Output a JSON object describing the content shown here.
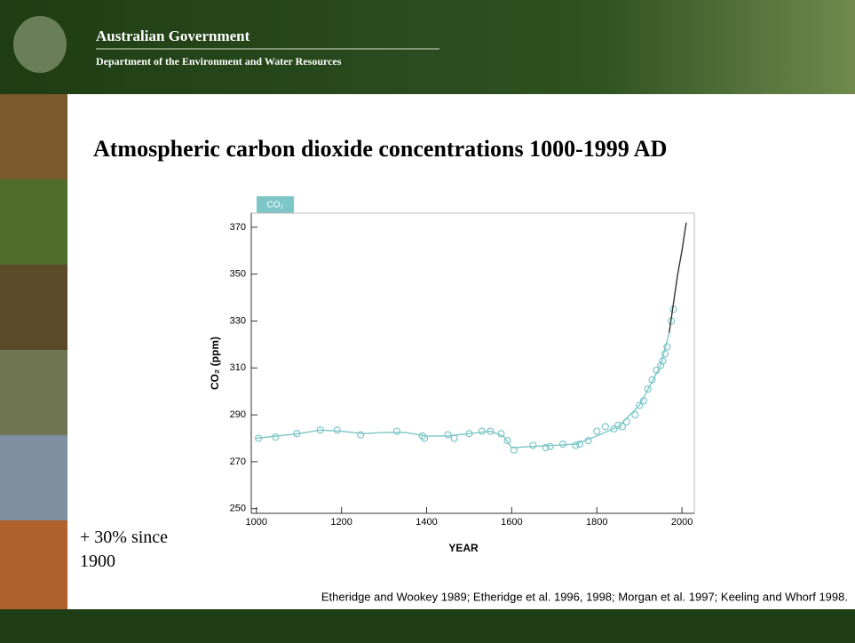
{
  "header": {
    "title": "Australian Government",
    "subtitle": "Department of the Environment and Water Resources"
  },
  "note": "+ 30% since 1900",
  "source": "Etheridge and Wookey 1989; Etheridge et al. 1996, 1998; Morgan et al. 1997; Keeling and Whorf 1998.",
  "chart_data": {
    "type": "line",
    "title": "Atmospheric carbon dioxide concentrations 1000-1999 AD",
    "tag": "CO₂",
    "x_label": "YEAR",
    "y_label": "CO₂ (ppm)",
    "xlim": [
      988,
      2029
    ],
    "ylim": [
      248,
      376
    ],
    "xticks": [
      1000,
      1200,
      1400,
      1600,
      1800,
      2000
    ],
    "yticks": [
      250,
      270,
      290,
      310,
      330,
      350,
      370
    ],
    "series": [
      {
        "style": "markers",
        "color": "#7cc6c8",
        "x": [
          1005,
          1045,
          1095,
          1150,
          1190,
          1245,
          1330,
          1390,
          1395,
          1450,
          1465,
          1500,
          1530,
          1550,
          1575,
          1590,
          1605,
          1650,
          1680,
          1690,
          1720,
          1750,
          1760,
          1780,
          1800,
          1820,
          1840,
          1850,
          1860,
          1870,
          1890,
          1900,
          1910,
          1920,
          1930,
          1940,
          1950,
          1955,
          1960,
          1965,
          1975,
          1980
        ],
        "values": [
          280,
          280.5,
          282,
          283.5,
          283.5,
          281.5,
          283,
          281,
          280,
          281.5,
          280,
          282,
          283,
          283,
          282,
          279,
          275,
          277,
          276,
          276.5,
          277.5,
          277,
          277.5,
          279,
          283,
          285,
          284,
          285.5,
          285,
          287,
          290,
          294,
          296,
          301,
          305,
          309,
          311,
          313,
          316,
          319,
          330,
          335
        ]
      },
      {
        "style": "line",
        "color": "#7cc6c8",
        "x": [
          1000,
          1100,
          1150,
          1200,
          1250,
          1300,
          1350,
          1400,
          1450,
          1500,
          1550,
          1580,
          1600,
          1650,
          1700,
          1750,
          1800,
          1850,
          1900,
          1950,
          1970
        ],
        "values": [
          280,
          282,
          283.5,
          283,
          282,
          282.5,
          282.5,
          281,
          281,
          282,
          283,
          281,
          276,
          276.5,
          277,
          277.5,
          281,
          285,
          294,
          311,
          325
        ]
      },
      {
        "style": "line",
        "color": "#333333",
        "x": [
          1970,
          1990,
          2000,
          2010
        ],
        "values": [
          325,
          350,
          360,
          372
        ]
      }
    ]
  }
}
